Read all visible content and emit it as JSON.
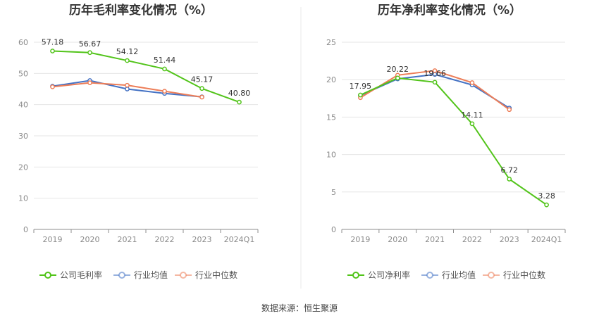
{
  "source": "数据来源：恒生聚源",
  "chart_data": [
    {
      "type": "line",
      "title": "历年毛利率变化情况（%）",
      "categories": [
        "2019",
        "2020",
        "2021",
        "2022",
        "2023",
        "2024Q1"
      ],
      "ylim": [
        0,
        60
      ],
      "yticks": [
        0,
        10,
        20,
        30,
        40,
        50,
        60
      ],
      "grid": true,
      "legend_position": "bottom",
      "series": [
        {
          "name": "公司毛利率",
          "color": "#52c41a",
          "values": [
            57.18,
            56.67,
            54.12,
            51.44,
            45.17,
            40.8
          ],
          "labels": [
            "57.18",
            "56.67",
            "54.12",
            "51.44",
            "45.17",
            "40.80"
          ]
        },
        {
          "name": "行业均值",
          "color": "#4472c4",
          "values": [
            45.9,
            47.7,
            45.0,
            43.6,
            42.5,
            null
          ]
        },
        {
          "name": "行业中位数",
          "color": "#ed7d57",
          "values": [
            45.7,
            47.0,
            46.2,
            44.3,
            42.4,
            null
          ]
        }
      ]
    },
    {
      "type": "line",
      "title": "历年净利率变化情况（%）",
      "categories": [
        "2019",
        "2020",
        "2021",
        "2022",
        "2023",
        "2024Q1"
      ],
      "ylim": [
        0,
        25
      ],
      "yticks": [
        0,
        5,
        10,
        15,
        20,
        25
      ],
      "grid": true,
      "legend_position": "bottom",
      "series": [
        {
          "name": "公司净利率",
          "color": "#52c41a",
          "values": [
            17.95,
            20.22,
            19.66,
            14.11,
            6.72,
            3.28
          ],
          "labels": [
            "17.95",
            "20.22",
            "19.66",
            "14.11",
            "6.72",
            "3.28"
          ]
        },
        {
          "name": "行业均值",
          "color": "#4472c4",
          "values": [
            17.9,
            20.1,
            20.7,
            19.3,
            16.2,
            null
          ]
        },
        {
          "name": "行业中位数",
          "color": "#ed7d57",
          "values": [
            17.6,
            20.6,
            21.2,
            19.6,
            16.0,
            null
          ]
        }
      ]
    }
  ]
}
